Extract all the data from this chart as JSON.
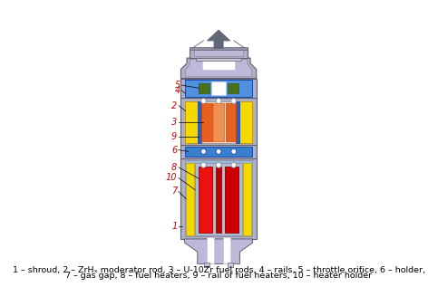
{
  "caption_line1": "1 – shroud, 2 – ZrHₓ moderator rod, 3 – U-10Zr fuel rods, 4 – rails, 5 – throttle orifice, 6 – holder,",
  "caption_line2": "7 – gas gap, 8 – fuel heaters, 9 – rail of fuel heaters, 10 – heater holder",
  "bg_color": "#ffffff",
  "label_color": "#cc0000",
  "label_fontsize": 7.0,
  "caption_fontsize": 6.8,
  "colors": {
    "shroud_outer": "#9090a8",
    "shroud_mid": "#b0b0c4",
    "shroud_dark": "#606070",
    "shroud_light": "#c8c8d8",
    "moderator_yellow": "#f5d800",
    "fuel_rod_orange_dark": "#d04000",
    "fuel_rod_orange": "#e86020",
    "fuel_rod_orange_light": "#f09050",
    "fuel_rod_red": "#cc0000",
    "fuel_rod_red2": "#ee1010",
    "rail_blue_dark": "#1a4aaa",
    "rail_blue": "#2060cc",
    "holder_blue": "#3a7fcc",
    "holder_blue_light": "#5090dd",
    "white": "#ffffff",
    "light_blue": "#9abcdc",
    "light_blue2": "#b0cce0",
    "light_gray": "#c8c8d4",
    "green_dark": "#3a5c10",
    "green": "#4a7018",
    "yellow": "#ffee00",
    "dark_gray": "#505060",
    "connector_gray": "#8888a0",
    "heater_holder": "#b0bcd0",
    "arrow_gray": "#606878",
    "purple_light": "#c0b8d8",
    "purple_mid": "#a8a0c0"
  }
}
